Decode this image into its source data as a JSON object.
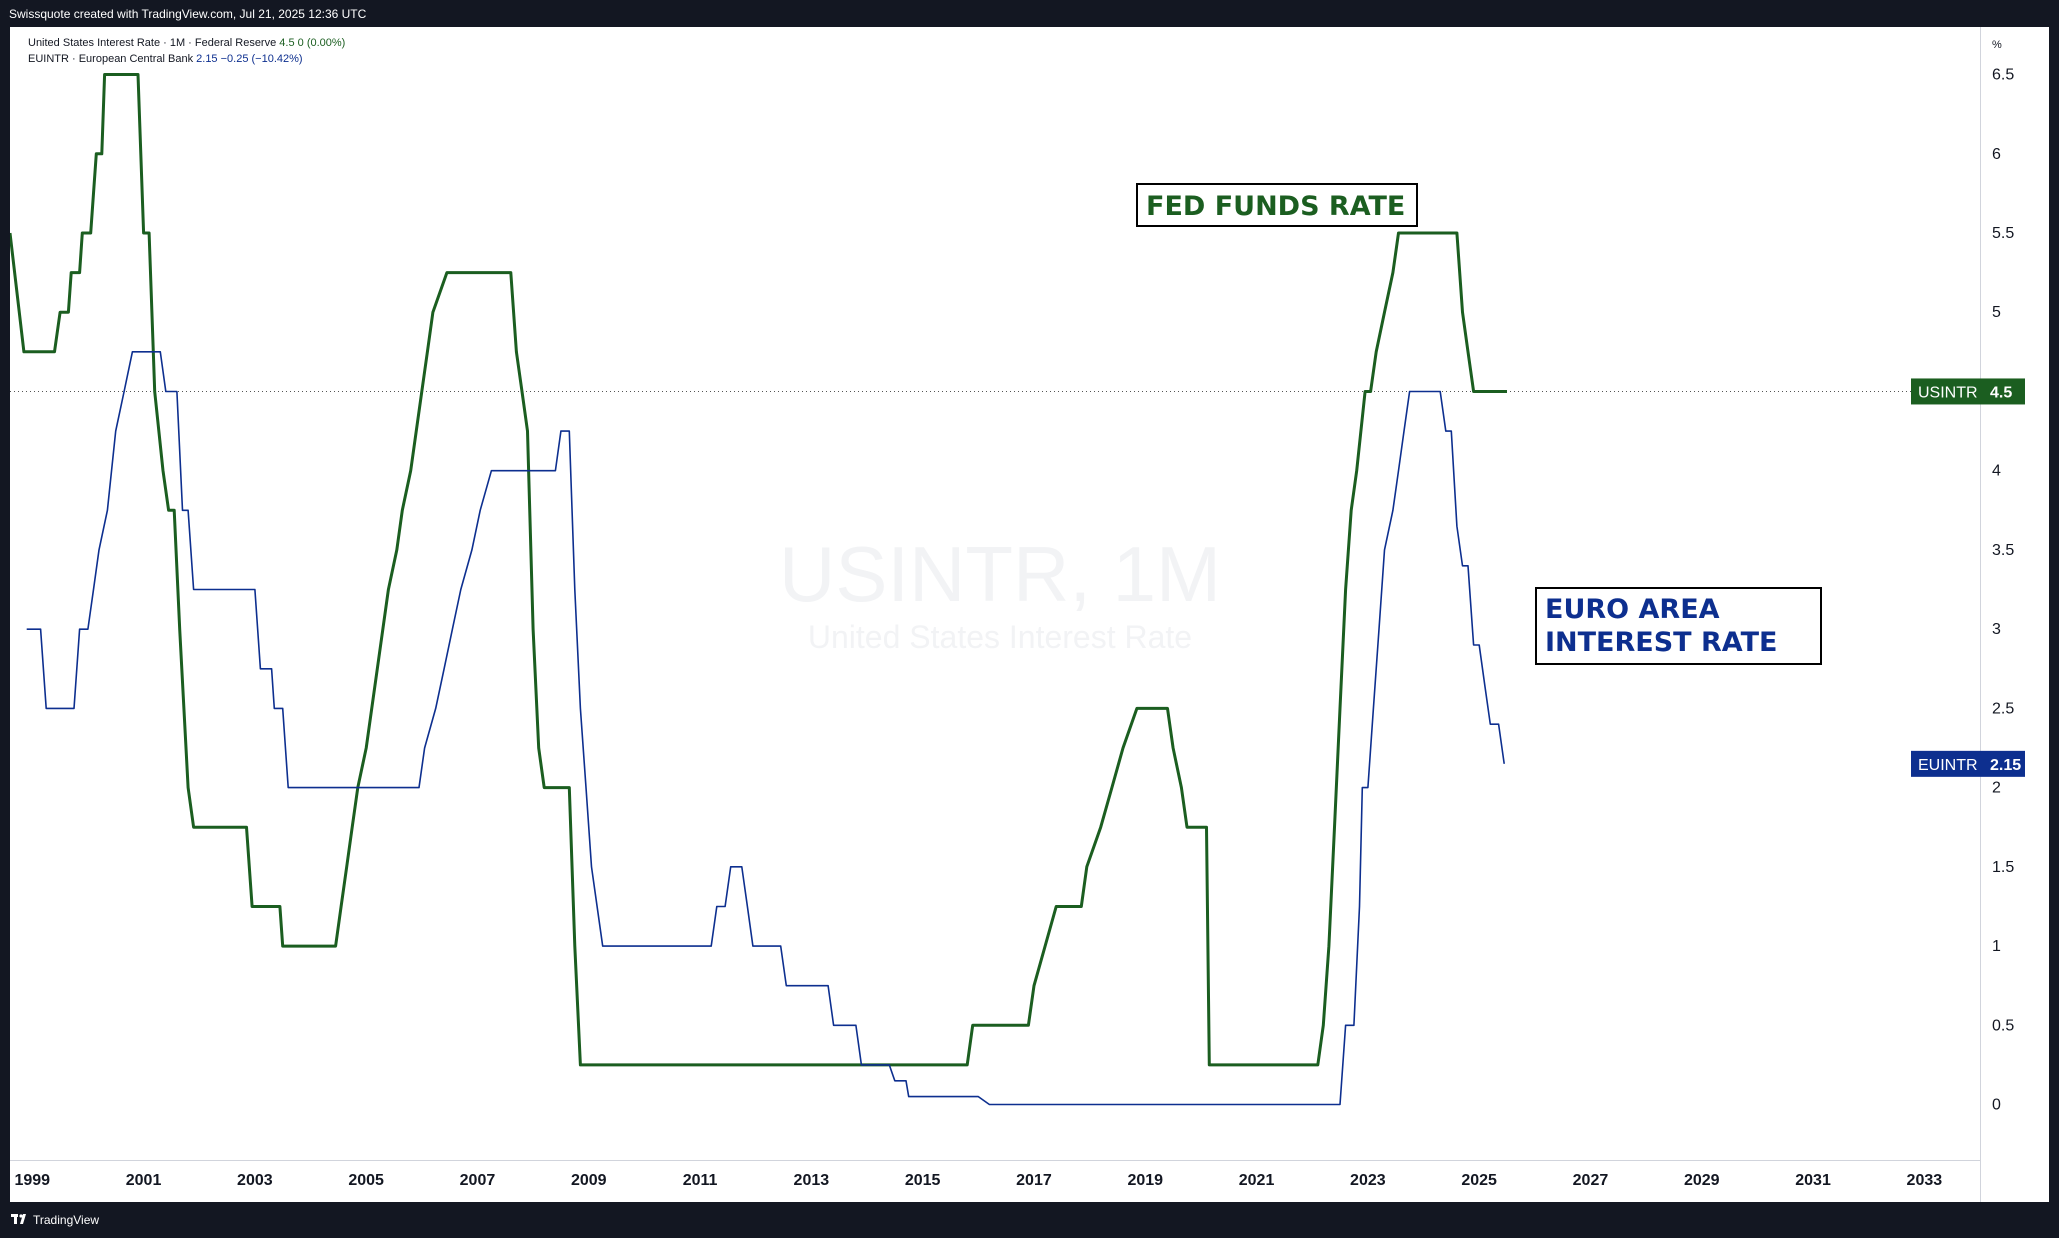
{
  "header": {
    "title": "Swissquote created with TradingView.com, Jul 21, 2025 12:36 UTC"
  },
  "footer": {
    "brand": "TradingView"
  },
  "legend": {
    "us": {
      "name": "United States Interest Rate · 1M · Federal Reserve",
      "value": "4.5",
      "change": "0 (0.00%)"
    },
    "eu": {
      "name": "EUINTR · European Central Bank",
      "value": "2.15",
      "change": "−0.25 (−10.42%)"
    }
  },
  "watermark": {
    "symbol": "USINTR, 1M",
    "name": "United States Interest Rate"
  },
  "annotations": {
    "fed": "FED FUNDS RATE",
    "euro_line1": "EURO AREA",
    "euro_line2": "INTEREST RATE"
  },
  "price_labels": {
    "us": {
      "label": "USINTR",
      "value": "4.5"
    },
    "eu": {
      "label": "EUINTR",
      "value": "2.15"
    }
  },
  "colors": {
    "us": "#1b5e20",
    "eu": "#0d2f8f",
    "axis_line": "#d1d4dc",
    "text": "#131722"
  },
  "chart_data": {
    "type": "line",
    "unit": "%",
    "x_ticks": [
      "1999",
      "2001",
      "2003",
      "2005",
      "2007",
      "2009",
      "2011",
      "2013",
      "2015",
      "2017",
      "2019",
      "2021",
      "2023",
      "2025",
      "2027",
      "2029",
      "2031",
      "2033"
    ],
    "y_ticks": [
      "0",
      "0.5",
      "1",
      "1.5",
      "2",
      "2.5",
      "3",
      "3.5",
      "4",
      "4.5",
      "5",
      "5.5",
      "6",
      "6.5"
    ],
    "x_range": [
      1998.6,
      2034.0
    ],
    "y_range": [
      -0.35,
      6.8
    ],
    "reference_line": 4.5,
    "series": [
      {
        "name": "USINTR",
        "color": "#1b5e20",
        "points": [
          [
            1998.6,
            5.5
          ],
          [
            1998.85,
            4.75
          ],
          [
            1999.4,
            4.75
          ],
          [
            1999.5,
            5.0
          ],
          [
            1999.65,
            5.0
          ],
          [
            1999.7,
            5.25
          ],
          [
            1999.85,
            5.25
          ],
          [
            1999.9,
            5.5
          ],
          [
            2000.05,
            5.5
          ],
          [
            2000.1,
            5.75
          ],
          [
            2000.15,
            6.0
          ],
          [
            2000.25,
            6.0
          ],
          [
            2000.3,
            6.5
          ],
          [
            2000.9,
            6.5
          ],
          [
            2001.0,
            5.5
          ],
          [
            2001.1,
            5.5
          ],
          [
            2001.2,
            4.5
          ],
          [
            2001.35,
            4.0
          ],
          [
            2001.45,
            3.75
          ],
          [
            2001.55,
            3.75
          ],
          [
            2001.65,
            3.0
          ],
          [
            2001.8,
            2.0
          ],
          [
            2001.9,
            1.75
          ],
          [
            2002.85,
            1.75
          ],
          [
            2002.95,
            1.25
          ],
          [
            2003.45,
            1.25
          ],
          [
            2003.5,
            1.0
          ],
          [
            2004.45,
            1.0
          ],
          [
            2004.55,
            1.25
          ],
          [
            2004.65,
            1.5
          ],
          [
            2004.75,
            1.75
          ],
          [
            2004.85,
            2.0
          ],
          [
            2005.0,
            2.25
          ],
          [
            2005.2,
            2.75
          ],
          [
            2005.4,
            3.25
          ],
          [
            2005.55,
            3.5
          ],
          [
            2005.65,
            3.75
          ],
          [
            2005.8,
            4.0
          ],
          [
            2006.0,
            4.5
          ],
          [
            2006.1,
            4.75
          ],
          [
            2006.2,
            5.0
          ],
          [
            2006.45,
            5.25
          ],
          [
            2007.6,
            5.25
          ],
          [
            2007.7,
            4.75
          ],
          [
            2007.8,
            4.5
          ],
          [
            2007.9,
            4.25
          ],
          [
            2008.0,
            3.0
          ],
          [
            2008.1,
            2.25
          ],
          [
            2008.2,
            2.0
          ],
          [
            2008.65,
            2.0
          ],
          [
            2008.75,
            1.0
          ],
          [
            2008.85,
            0.25
          ],
          [
            2015.8,
            0.25
          ],
          [
            2015.9,
            0.5
          ],
          [
            2016.9,
            0.5
          ],
          [
            2017.0,
            0.75
          ],
          [
            2017.2,
            1.0
          ],
          [
            2017.4,
            1.25
          ],
          [
            2017.85,
            1.25
          ],
          [
            2017.95,
            1.5
          ],
          [
            2018.2,
            1.75
          ],
          [
            2018.4,
            2.0
          ],
          [
            2018.6,
            2.25
          ],
          [
            2018.85,
            2.5
          ],
          [
            2019.4,
            2.5
          ],
          [
            2019.5,
            2.25
          ],
          [
            2019.65,
            2.0
          ],
          [
            2019.75,
            1.75
          ],
          [
            2020.1,
            1.75
          ],
          [
            2020.15,
            0.25
          ],
          [
            2022.1,
            0.25
          ],
          [
            2022.2,
            0.5
          ],
          [
            2022.3,
            1.0
          ],
          [
            2022.4,
            1.75
          ],
          [
            2022.5,
            2.5
          ],
          [
            2022.6,
            3.25
          ],
          [
            2022.7,
            3.75
          ],
          [
            2022.8,
            4.0
          ],
          [
            2022.95,
            4.5
          ],
          [
            2023.05,
            4.5
          ],
          [
            2023.15,
            4.75
          ],
          [
            2023.3,
            5.0
          ],
          [
            2023.45,
            5.25
          ],
          [
            2023.55,
            5.5
          ],
          [
            2024.6,
            5.5
          ],
          [
            2024.7,
            5.0
          ],
          [
            2024.8,
            4.75
          ],
          [
            2024.9,
            4.5
          ],
          [
            2025.5,
            4.5
          ]
        ]
      },
      {
        "name": "EUINTR",
        "color": "#0d2f8f",
        "points": [
          [
            1998.9,
            3.0
          ],
          [
            1999.15,
            3.0
          ],
          [
            1999.25,
            2.5
          ],
          [
            1999.75,
            2.5
          ],
          [
            1999.85,
            3.0
          ],
          [
            2000.0,
            3.0
          ],
          [
            2000.1,
            3.25
          ],
          [
            2000.2,
            3.5
          ],
          [
            2000.35,
            3.75
          ],
          [
            2000.5,
            4.25
          ],
          [
            2000.65,
            4.5
          ],
          [
            2000.8,
            4.75
          ],
          [
            2001.3,
            4.75
          ],
          [
            2001.4,
            4.5
          ],
          [
            2001.6,
            4.5
          ],
          [
            2001.7,
            3.75
          ],
          [
            2001.8,
            3.75
          ],
          [
            2001.9,
            3.25
          ],
          [
            2003.0,
            3.25
          ],
          [
            2003.1,
            2.75
          ],
          [
            2003.3,
            2.75
          ],
          [
            2003.35,
            2.5
          ],
          [
            2003.5,
            2.5
          ],
          [
            2003.6,
            2.0
          ],
          [
            2005.95,
            2.0
          ],
          [
            2006.05,
            2.25
          ],
          [
            2006.25,
            2.5
          ],
          [
            2006.4,
            2.75
          ],
          [
            2006.55,
            3.0
          ],
          [
            2006.7,
            3.25
          ],
          [
            2006.9,
            3.5
          ],
          [
            2007.05,
            3.75
          ],
          [
            2007.25,
            4.0
          ],
          [
            2008.4,
            4.0
          ],
          [
            2008.5,
            4.25
          ],
          [
            2008.65,
            4.25
          ],
          [
            2008.75,
            3.25
          ],
          [
            2008.85,
            2.5
          ],
          [
            2008.95,
            2.0
          ],
          [
            2009.05,
            1.5
          ],
          [
            2009.15,
            1.25
          ],
          [
            2009.25,
            1.0
          ],
          [
            2011.2,
            1.0
          ],
          [
            2011.3,
            1.25
          ],
          [
            2011.45,
            1.25
          ],
          [
            2011.55,
            1.5
          ],
          [
            2011.75,
            1.5
          ],
          [
            2011.85,
            1.25
          ],
          [
            2011.95,
            1.0
          ],
          [
            2012.45,
            1.0
          ],
          [
            2012.55,
            0.75
          ],
          [
            2013.3,
            0.75
          ],
          [
            2013.4,
            0.5
          ],
          [
            2013.8,
            0.5
          ],
          [
            2013.9,
            0.25
          ],
          [
            2014.4,
            0.25
          ],
          [
            2014.5,
            0.15
          ],
          [
            2014.7,
            0.15
          ],
          [
            2014.75,
            0.05
          ],
          [
            2016.0,
            0.05
          ],
          [
            2016.2,
            0.0
          ],
          [
            2022.5,
            0.0
          ],
          [
            2022.6,
            0.5
          ],
          [
            2022.75,
            0.5
          ],
          [
            2022.85,
            1.25
          ],
          [
            2022.9,
            2.0
          ],
          [
            2023.0,
            2.0
          ],
          [
            2023.1,
            2.5
          ],
          [
            2023.2,
            3.0
          ],
          [
            2023.3,
            3.5
          ],
          [
            2023.45,
            3.75
          ],
          [
            2023.55,
            4.0
          ],
          [
            2023.65,
            4.25
          ],
          [
            2023.75,
            4.5
          ],
          [
            2024.3,
            4.5
          ],
          [
            2024.4,
            4.25
          ],
          [
            2024.5,
            4.25
          ],
          [
            2024.6,
            3.65
          ],
          [
            2024.7,
            3.4
          ],
          [
            2024.8,
            3.4
          ],
          [
            2024.9,
            2.9
          ],
          [
            2025.0,
            2.9
          ],
          [
            2025.1,
            2.65
          ],
          [
            2025.2,
            2.4
          ],
          [
            2025.35,
            2.4
          ],
          [
            2025.45,
            2.15
          ]
        ]
      }
    ]
  }
}
